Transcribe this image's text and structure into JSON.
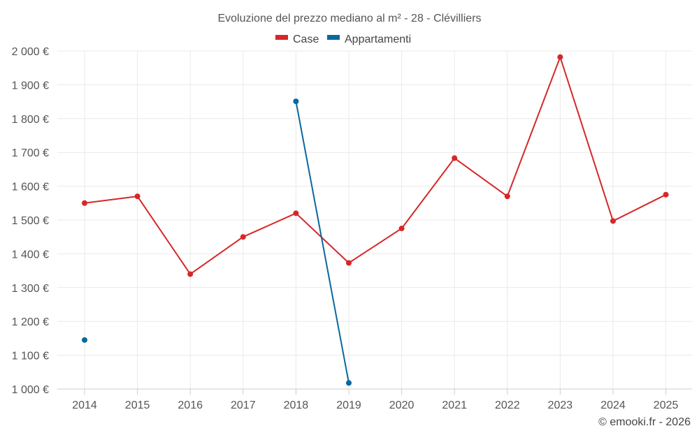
{
  "chart_data": {
    "type": "line",
    "title": "Evoluzione del prezzo mediano al m² - 28 - Clévilliers",
    "categories": [
      "2014",
      "2015",
      "2016",
      "2017",
      "2018",
      "2019",
      "2020",
      "2021",
      "2022",
      "2023",
      "2024",
      "2025"
    ],
    "ylim": [
      1000,
      2000
    ],
    "yticks": [
      1000,
      1100,
      1200,
      1300,
      1400,
      1500,
      1600,
      1700,
      1800,
      1900,
      2000
    ],
    "ytick_labels": [
      "1 000 €",
      "1 100 €",
      "1 200 €",
      "1 300 €",
      "1 400 €",
      "1 500 €",
      "1 600 €",
      "1 700 €",
      "1 800 €",
      "1 900 €",
      "2 000 €"
    ],
    "grid": true,
    "legend_position": "top-center",
    "series": [
      {
        "name": "Case",
        "color": "#d62728",
        "values": [
          1550,
          1570,
          1340,
          1450,
          1520,
          1373,
          1475,
          1683,
          1570,
          1982,
          1497,
          1575
        ]
      },
      {
        "name": "Appartamenti",
        "color": "#0868a0",
        "values": [
          1145,
          null,
          null,
          null,
          1851,
          1018,
          null,
          null,
          null,
          null,
          null,
          null
        ]
      }
    ],
    "credit": "© emooki.fr - 2026"
  }
}
